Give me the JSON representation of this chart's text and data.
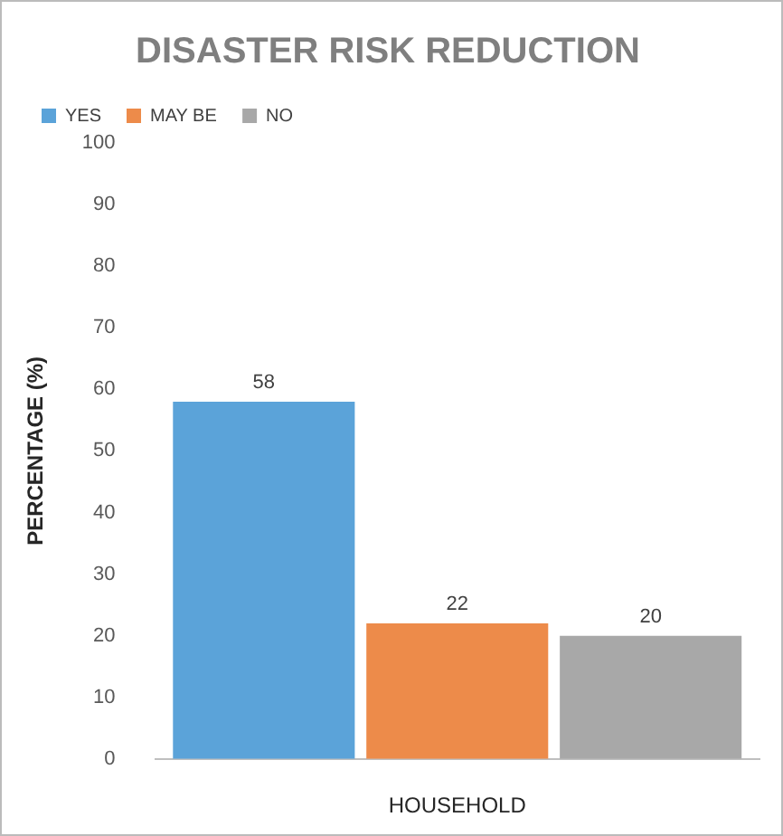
{
  "chart_data": {
    "type": "bar",
    "title": "DISASTER RISK REDUCTION",
    "ylabel": "PERCENTAGE (%)",
    "xlabel": "HOUSEHOLD",
    "categories": [
      null
    ],
    "series": [
      {
        "name": "YES",
        "color": "#5ba3d9",
        "values": [
          58
        ]
      },
      {
        "name": "MAY BE",
        "color": "#ed8b4a",
        "values": [
          22
        ]
      },
      {
        "name": "NO",
        "color": "#a8a8a8",
        "values": [
          20
        ]
      }
    ],
    "ylim": [
      0,
      100
    ],
    "yticks": [
      0,
      10,
      20,
      30,
      40,
      50,
      60,
      70,
      80,
      90,
      100
    ],
    "grid": false,
    "legend": "top left",
    "data_labels": true
  }
}
